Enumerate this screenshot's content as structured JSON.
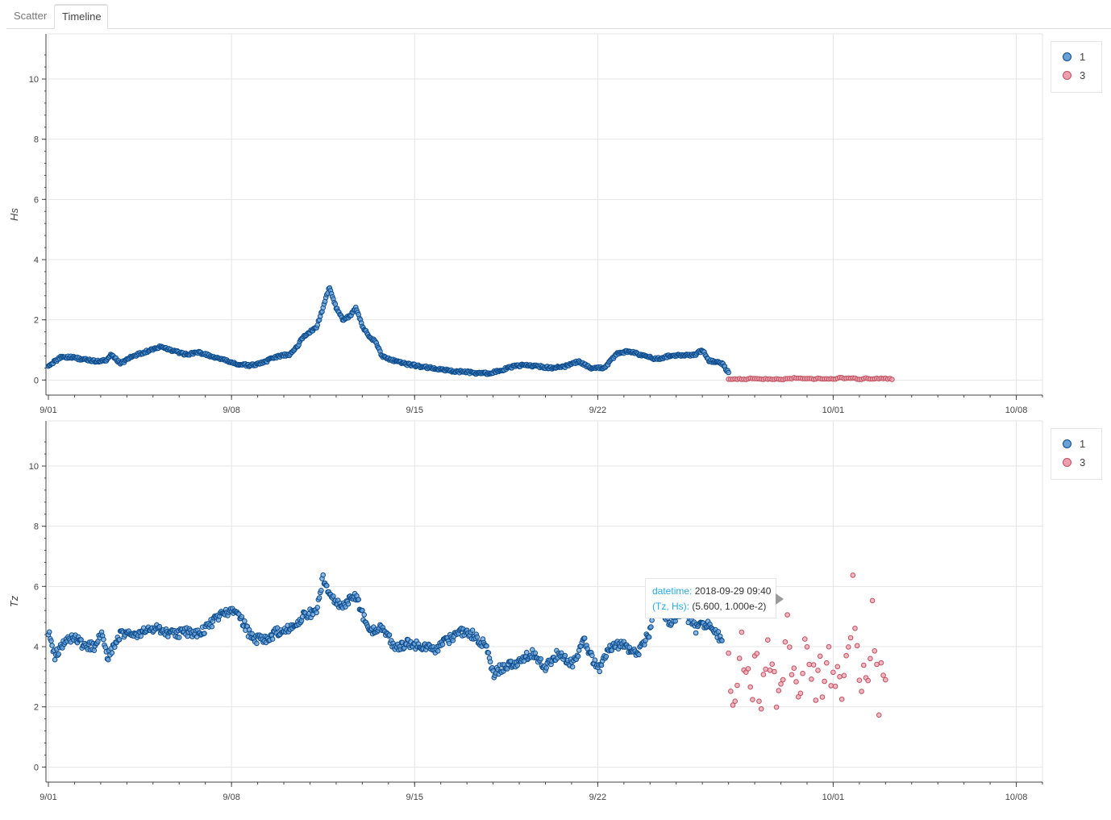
{
  "tabs": [
    {
      "label": "Scatter",
      "active": false
    },
    {
      "label": "Timeline",
      "active": true
    }
  ],
  "colors": {
    "series_1_fill": "#6aa2d8",
    "series_1_line": "#0b4a8a",
    "series_3_fill": "#ec9fae",
    "series_3_line": "#c0505f",
    "grid": "#e5e5e5",
    "tooltip_key": "#26aae1"
  },
  "chart_data": [
    {
      "type": "scatter",
      "ylabel": "Hs",
      "ylim": [
        -0.5,
        11.5
      ],
      "yticks": [
        0,
        2,
        4,
        6,
        8,
        10
      ],
      "x_range": [
        "2018-09-01",
        "2018-10-09"
      ],
      "x_ticks": [
        {
          "date": "2018-09-01",
          "label": "9/01"
        },
        {
          "date": "2018-09-08",
          "label": "9/08"
        },
        {
          "date": "2018-09-15",
          "label": "9/15"
        },
        {
          "date": "2018-09-22",
          "label": "9/22"
        },
        {
          "date": "2018-10-01",
          "label": "10/01"
        },
        {
          "date": "2018-10-08",
          "label": "10/08"
        }
      ],
      "grid": true,
      "legend": {
        "position": "top-right",
        "entries": [
          "1",
          "3"
        ]
      },
      "series": [
        {
          "name": "1",
          "points": [
            [
              "2018-09-01 00:00",
              0.5
            ],
            [
              "2018-09-01 06:00",
              0.62
            ],
            [
              "2018-09-01 12:00",
              0.78
            ],
            [
              "2018-09-02 00:00",
              0.74
            ],
            [
              "2018-09-02 12:00",
              0.66
            ],
            [
              "2018-09-03 00:00",
              0.62
            ],
            [
              "2018-09-03 06:00",
              0.68
            ],
            [
              "2018-09-03 10:00",
              0.85
            ],
            [
              "2018-09-03 18:00",
              0.55
            ],
            [
              "2018-09-04 06:00",
              0.8
            ],
            [
              "2018-09-04 18:00",
              0.95
            ],
            [
              "2018-09-05 06:00",
              1.1
            ],
            [
              "2018-09-05 18:00",
              0.98
            ],
            [
              "2018-09-06 06:00",
              0.85
            ],
            [
              "2018-09-06 18:00",
              0.92
            ],
            [
              "2018-09-07 06:00",
              0.78
            ],
            [
              "2018-09-07 18:00",
              0.65
            ],
            [
              "2018-09-08 06:00",
              0.52
            ],
            [
              "2018-09-08 18:00",
              0.48
            ],
            [
              "2018-09-09 06:00",
              0.6
            ],
            [
              "2018-09-09 18:00",
              0.78
            ],
            [
              "2018-09-10 06:00",
              0.86
            ],
            [
              "2018-09-10 12:00",
              1.1
            ],
            [
              "2018-09-10 18:00",
              1.45
            ],
            [
              "2018-09-11 00:00",
              1.6
            ],
            [
              "2018-09-11 06:00",
              1.75
            ],
            [
              "2018-09-11 12:00",
              2.4
            ],
            [
              "2018-09-11 18:00",
              3.1
            ],
            [
              "2018-09-12 00:00",
              2.4
            ],
            [
              "2018-09-12 06:00",
              2.0
            ],
            [
              "2018-09-12 12:00",
              2.1
            ],
            [
              "2018-09-12 18:00",
              2.4
            ],
            [
              "2018-09-13 00:00",
              1.8
            ],
            [
              "2018-09-13 06:00",
              1.45
            ],
            [
              "2018-09-13 12:00",
              1.3
            ],
            [
              "2018-09-13 18:00",
              0.8
            ],
            [
              "2018-09-14 06:00",
              0.62
            ],
            [
              "2018-09-14 18:00",
              0.52
            ],
            [
              "2018-09-15 06:00",
              0.45
            ],
            [
              "2018-09-15 18:00",
              0.38
            ],
            [
              "2018-09-16 06:00",
              0.32
            ],
            [
              "2018-09-16 18:00",
              0.28
            ],
            [
              "2018-09-17 06:00",
              0.24
            ],
            [
              "2018-09-17 18:00",
              0.22
            ],
            [
              "2018-09-18 06:00",
              0.3
            ],
            [
              "2018-09-18 18:00",
              0.45
            ],
            [
              "2018-09-19 06:00",
              0.5
            ],
            [
              "2018-09-19 18:00",
              0.45
            ],
            [
              "2018-09-20 06:00",
              0.4
            ],
            [
              "2018-09-20 18:00",
              0.45
            ],
            [
              "2018-09-21 06:00",
              0.62
            ],
            [
              "2018-09-21 18:00",
              0.4
            ],
            [
              "2018-09-22 06:00",
              0.4
            ],
            [
              "2018-09-22 18:00",
              0.9
            ],
            [
              "2018-09-23 06:00",
              0.95
            ],
            [
              "2018-09-23 18:00",
              0.8
            ],
            [
              "2018-09-24 06:00",
              0.7
            ],
            [
              "2018-09-24 18:00",
              0.8
            ],
            [
              "2018-09-25 06:00",
              0.82
            ],
            [
              "2018-09-25 18:00",
              0.85
            ],
            [
              "2018-09-26 00:00",
              1.0
            ],
            [
              "2018-09-26 06:00",
              0.65
            ],
            [
              "2018-09-26 18:00",
              0.55
            ],
            [
              "2018-09-27 00:00",
              0.25
            ]
          ]
        },
        {
          "name": "3",
          "points": [
            [
              "2018-09-27 00:00",
              0.02
            ],
            [
              "2018-09-27 12:00",
              0.03
            ],
            [
              "2018-09-28 00:00",
              0.05
            ],
            [
              "2018-09-28 12:00",
              0.04
            ],
            [
              "2018-09-29 00:00",
              0.02
            ],
            [
              "2018-09-29 12:00",
              0.06
            ],
            [
              "2018-09-30 00:00",
              0.03
            ],
            [
              "2018-09-30 12:00",
              0.05
            ],
            [
              "2018-10-01 00:00",
              0.02
            ],
            [
              "2018-10-01 06:00",
              0.08
            ],
            [
              "2018-10-01 12:00",
              0.04
            ],
            [
              "2018-10-01 18:00",
              0.07
            ],
            [
              "2018-10-02 00:00",
              0.03
            ],
            [
              "2018-10-02 06:00",
              0.06
            ],
            [
              "2018-10-02 12:00",
              0.02
            ],
            [
              "2018-10-02 18:00",
              0.05
            ],
            [
              "2018-10-03 00:00",
              0.06
            ],
            [
              "2018-10-03 06:00",
              0.02
            ]
          ]
        }
      ]
    },
    {
      "type": "scatter",
      "ylabel": "Tz",
      "ylim": [
        -0.5,
        11.5
      ],
      "yticks": [
        0,
        2,
        4,
        6,
        8,
        10
      ],
      "x_range": [
        "2018-09-01",
        "2018-10-09"
      ],
      "x_ticks": [
        {
          "date": "2018-09-01",
          "label": "9/01"
        },
        {
          "date": "2018-09-08",
          "label": "9/08"
        },
        {
          "date": "2018-09-15",
          "label": "9/15"
        },
        {
          "date": "2018-09-22",
          "label": "9/22"
        },
        {
          "date": "2018-10-01",
          "label": "10/01"
        },
        {
          "date": "2018-10-08",
          "label": "10/08"
        }
      ],
      "grid": true,
      "legend": {
        "position": "top-right",
        "entries": [
          "1",
          "3"
        ]
      },
      "series": [
        {
          "name": "1",
          "points": [
            [
              "2018-09-01 00:00",
              4.5
            ],
            [
              "2018-09-01 06:00",
              3.7
            ],
            [
              "2018-09-01 12:00",
              4.0
            ],
            [
              "2018-09-02 00:00",
              4.4
            ],
            [
              "2018-09-02 06:00",
              4.1
            ],
            [
              "2018-09-02 18:00",
              4.0
            ],
            [
              "2018-09-03 00:00",
              4.5
            ],
            [
              "2018-09-03 06:00",
              3.6
            ],
            [
              "2018-09-03 18:00",
              4.4
            ],
            [
              "2018-09-04 06:00",
              4.4
            ],
            [
              "2018-09-04 18:00",
              4.5
            ],
            [
              "2018-09-05 06:00",
              4.6
            ],
            [
              "2018-09-05 18:00",
              4.4
            ],
            [
              "2018-09-06 06:00",
              4.5
            ],
            [
              "2018-09-06 18:00",
              4.4
            ],
            [
              "2018-09-07 06:00",
              4.8
            ],
            [
              "2018-09-07 18:00",
              5.2
            ],
            [
              "2018-09-08 06:00",
              5.1
            ],
            [
              "2018-09-08 18:00",
              4.3
            ],
            [
              "2018-09-09 06:00",
              4.2
            ],
            [
              "2018-09-09 18:00",
              4.5
            ],
            [
              "2018-09-10 06:00",
              4.6
            ],
            [
              "2018-09-10 18:00",
              5.0
            ],
            [
              "2018-09-11 06:00",
              5.2
            ],
            [
              "2018-09-11 12:00",
              6.3
            ],
            [
              "2018-09-11 18:00",
              5.6
            ],
            [
              "2018-09-12 06:00",
              5.4
            ],
            [
              "2018-09-12 18:00",
              5.7
            ],
            [
              "2018-09-13 06:00",
              4.5
            ],
            [
              "2018-09-13 18:00",
              4.6
            ],
            [
              "2018-09-14 06:00",
              4.0
            ],
            [
              "2018-09-14 18:00",
              4.1
            ],
            [
              "2018-09-15 06:00",
              4.0
            ],
            [
              "2018-09-15 18:00",
              3.9
            ],
            [
              "2018-09-16 06:00",
              4.2
            ],
            [
              "2018-09-16 18:00",
              4.5
            ],
            [
              "2018-09-17 06:00",
              4.4
            ],
            [
              "2018-09-17 18:00",
              4.0
            ],
            [
              "2018-09-18 00:00",
              3.1
            ],
            [
              "2018-09-18 12:00",
              3.4
            ],
            [
              "2018-09-19 00:00",
              3.5
            ],
            [
              "2018-09-19 12:00",
              3.8
            ],
            [
              "2018-09-20 00:00",
              3.3
            ],
            [
              "2018-09-20 12:00",
              3.8
            ],
            [
              "2018-09-21 00:00",
              3.4
            ],
            [
              "2018-09-21 12:00",
              4.2
            ],
            [
              "2018-09-22 00:00",
              3.2
            ],
            [
              "2018-09-22 12:00",
              4.0
            ],
            [
              "2018-09-23 00:00",
              4.1
            ],
            [
              "2018-09-23 12:00",
              3.7
            ],
            [
              "2018-09-24 00:00",
              4.5
            ],
            [
              "2018-09-24 06:00",
              5.6
            ],
            [
              "2018-09-24 18:00",
              4.8
            ],
            [
              "2018-09-25 06:00",
              5.2
            ],
            [
              "2018-09-25 18:00",
              4.6
            ],
            [
              "2018-09-26 06:00",
              4.8
            ],
            [
              "2018-09-26 18:00",
              4.2
            ]
          ]
        },
        {
          "name": "3",
          "points": [
            [
              "2018-09-27 00:00",
              3.0
            ],
            [
              "2018-09-27 06:00",
              2.6
            ],
            [
              "2018-09-27 12:00",
              4.6
            ],
            [
              "2018-09-27 18:00",
              2.7
            ],
            [
              "2018-09-28 00:00",
              3.2
            ],
            [
              "2018-09-28 06:00",
              2.8
            ],
            [
              "2018-09-28 12:00",
              4.1
            ],
            [
              "2018-09-28 18:00",
              2.6
            ],
            [
              "2018-09-29 00:00",
              3.4
            ],
            [
              "2018-09-29 06:00",
              4.5
            ],
            [
              "2018-09-29 12:00",
              2.7
            ],
            [
              "2018-09-29 18:00",
              3.0
            ],
            [
              "2018-09-30 00:00",
              4.1
            ],
            [
              "2018-09-30 06:00",
              2.9
            ],
            [
              "2018-09-30 12:00",
              3.2
            ],
            [
              "2018-09-30 18:00",
              2.8
            ],
            [
              "2018-10-01 00:00",
              3.9
            ],
            [
              "2018-10-01 06:00",
              2.6
            ],
            [
              "2018-10-01 12:00",
              3.1
            ],
            [
              "2018-10-01 18:00",
              5.6
            ],
            [
              "2018-10-02 00:00",
              2.7
            ],
            [
              "2018-10-02 06:00",
              3.0
            ],
            [
              "2018-10-02 12:00",
              4.8
            ],
            [
              "2018-10-02 18:00",
              2.6
            ],
            [
              "2018-10-03 00:00",
              2.9
            ]
          ]
        }
      ]
    }
  ],
  "tooltip": {
    "datetime_key": "datetime:",
    "datetime_value": "2018-09-29 09:40",
    "pair_key": "(Tz, Hs):",
    "pair_value": "(5.600, 1.000e-2)"
  }
}
